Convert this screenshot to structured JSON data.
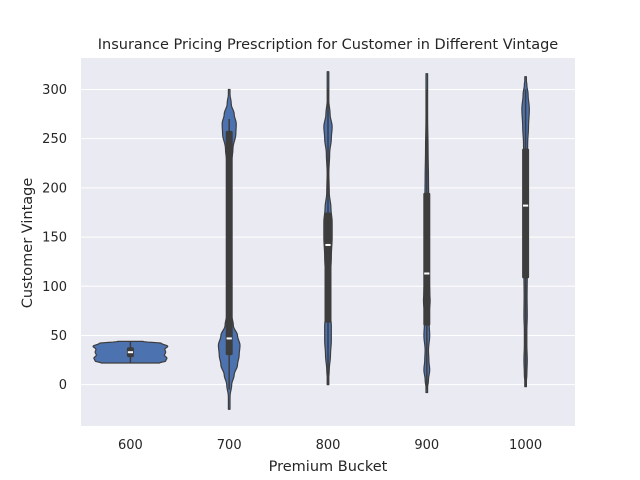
{
  "chart_data": {
    "type": "violin",
    "title": "Insurance Pricing Prescription for Customer in Different Vintage",
    "xlabel": "Premium Bucket",
    "ylabel": "Customer Vintage",
    "categories": [
      "600",
      "700",
      "800",
      "900",
      "1000"
    ],
    "y_ticks": [
      0,
      50,
      100,
      150,
      200,
      250,
      300
    ],
    "ylim": [
      -42,
      332
    ],
    "grid": true,
    "colors": {
      "background": "#EAEAF2",
      "violin_fill": "#4C72B0",
      "violin_edge": "#3D3D3D",
      "box": "#3D3D3D",
      "median": "#ffffff",
      "grid": "#ffffff"
    },
    "violins": [
      {
        "category": "600",
        "range": [
          22,
          44
        ],
        "q1": 28,
        "median": 33,
        "q3": 38,
        "whisker": [
          22,
          44
        ],
        "profile": [
          [
            22,
            0.7
          ],
          [
            24,
            0.85
          ],
          [
            27,
            0.88
          ],
          [
            30,
            0.82
          ],
          [
            33,
            0.85
          ],
          [
            36,
            0.83
          ],
          [
            39,
            0.9
          ],
          [
            42,
            0.75
          ],
          [
            44,
            0.3
          ]
        ]
      },
      {
        "category": "700",
        "range": [
          -25,
          300
        ],
        "q1": 30,
        "median": 47,
        "q3": 258,
        "whisker": [
          -5,
          270
        ],
        "profile": [
          [
            -25,
            0
          ],
          [
            -12,
            0.02
          ],
          [
            0,
            0.06
          ],
          [
            10,
            0.12
          ],
          [
            20,
            0.2
          ],
          [
            30,
            0.24
          ],
          [
            40,
            0.26
          ],
          [
            50,
            0.2
          ],
          [
            60,
            0.1
          ],
          [
            75,
            0.04
          ],
          [
            100,
            0.03
          ],
          [
            130,
            0.028
          ],
          [
            160,
            0.028
          ],
          [
            190,
            0.03
          ],
          [
            220,
            0.04
          ],
          [
            240,
            0.09
          ],
          [
            255,
            0.16
          ],
          [
            265,
            0.17
          ],
          [
            275,
            0.12
          ],
          [
            285,
            0.05
          ],
          [
            300,
            0
          ]
        ]
      },
      {
        "category": "800",
        "range": [
          0,
          318
        ],
        "q1": 63,
        "median": 142,
        "q3": 175,
        "whisker": [
          0,
          300
        ],
        "profile": [
          [
            0,
            0
          ],
          [
            15,
            0.03
          ],
          [
            30,
            0.06
          ],
          [
            45,
            0.08
          ],
          [
            60,
            0.08
          ],
          [
            70,
            0.06
          ],
          [
            85,
            0.05
          ],
          [
            110,
            0.06
          ],
          [
            130,
            0.08
          ],
          [
            150,
            0.1
          ],
          [
            165,
            0.1
          ],
          [
            180,
            0.07
          ],
          [
            195,
            0.03
          ],
          [
            215,
            0.02
          ],
          [
            235,
            0.04
          ],
          [
            250,
            0.08
          ],
          [
            262,
            0.1
          ],
          [
            275,
            0.05
          ],
          [
            290,
            0.015
          ],
          [
            318,
            0
          ]
        ]
      },
      {
        "category": "900",
        "range": [
          -8,
          316
        ],
        "q1": 60,
        "median": 113,
        "q3": 195,
        "whisker": [
          -5,
          300
        ],
        "profile": [
          [
            -8,
            0
          ],
          [
            5,
            0.04
          ],
          [
            15,
            0.07
          ],
          [
            25,
            0.05
          ],
          [
            35,
            0.04
          ],
          [
            50,
            0.07
          ],
          [
            60,
            0.06
          ],
          [
            70,
            0.05
          ],
          [
            85,
            0.08
          ],
          [
            95,
            0.07
          ],
          [
            110,
            0.05
          ],
          [
            130,
            0.06
          ],
          [
            150,
            0.045
          ],
          [
            180,
            0.05
          ],
          [
            210,
            0.04
          ],
          [
            240,
            0.03
          ],
          [
            270,
            0.02
          ],
          [
            295,
            0.01
          ],
          [
            316,
            0
          ]
        ]
      },
      {
        "category": "1000",
        "range": [
          -2,
          313
        ],
        "q1": 108,
        "median": 182,
        "q3": 240,
        "whisker": [
          -2,
          300
        ],
        "profile": [
          [
            -2,
            0
          ],
          [
            10,
            0.03
          ],
          [
            25,
            0.04
          ],
          [
            40,
            0.03
          ],
          [
            55,
            0.03
          ],
          [
            70,
            0.04
          ],
          [
            90,
            0.035
          ],
          [
            110,
            0.04
          ],
          [
            140,
            0.05
          ],
          [
            170,
            0.06
          ],
          [
            200,
            0.05
          ],
          [
            225,
            0.04
          ],
          [
            245,
            0.05
          ],
          [
            262,
            0.07
          ],
          [
            280,
            0.09
          ],
          [
            295,
            0.06
          ],
          [
            305,
            0.03
          ],
          [
            313,
            0
          ]
        ]
      }
    ]
  }
}
